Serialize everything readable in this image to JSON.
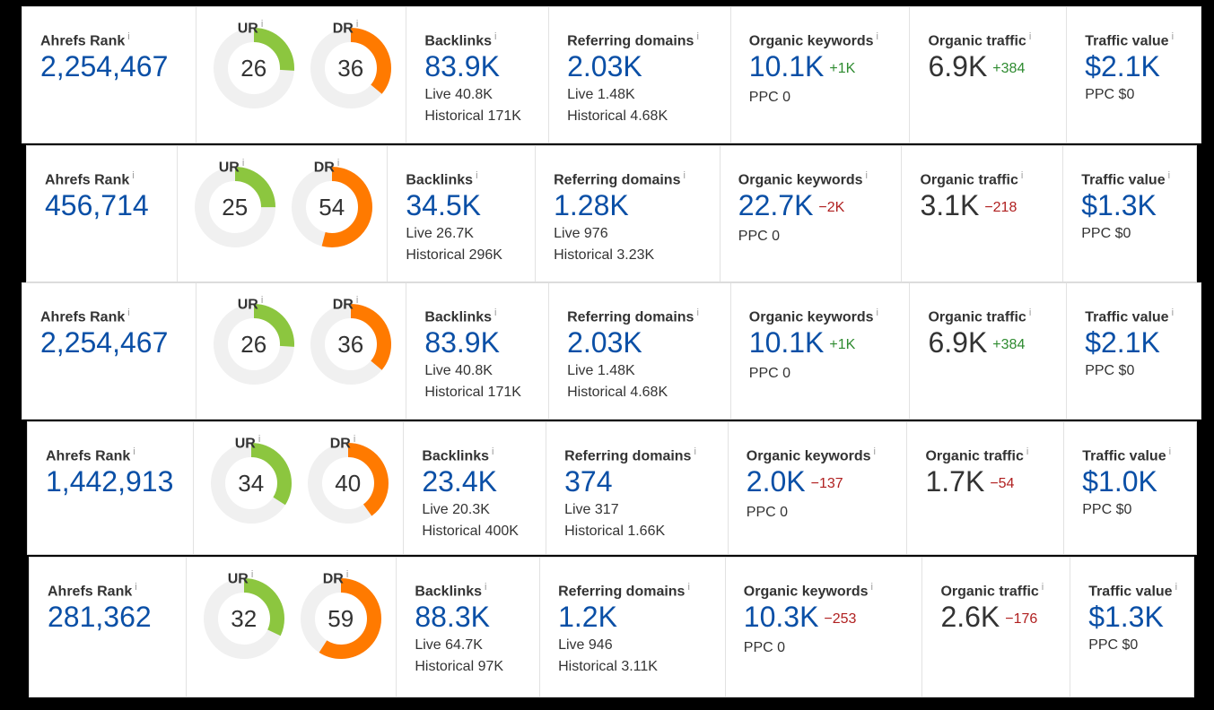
{
  "labels": {
    "ahrefs_rank": "Ahrefs Rank",
    "ur": "UR",
    "dr": "DR",
    "backlinks": "Backlinks",
    "referring_domains": "Referring domains",
    "organic_keywords": "Organic keywords",
    "organic_traffic": "Organic traffic",
    "traffic_value": "Traffic value",
    "info": "i"
  },
  "colors": {
    "ur": "#8cc63f",
    "dr": "#ff7a00",
    "track": "#f0f0f0",
    "link_blue": "#0a4fa6",
    "up": "#2e8b30",
    "down": "#b02020"
  },
  "rows": [
    {
      "ahrefs_rank": "2,254,467",
      "ur": "26",
      "dr": "36",
      "backlinks": "83.9K",
      "backlinks_live": "Live 40.8K",
      "backlinks_historical": "Historical 171K",
      "ref_domains": "2.03K",
      "ref_live": "Live 1.48K",
      "ref_historical": "Historical 4.68K",
      "org_keywords": "10.1K",
      "org_keywords_delta": "+1K",
      "org_keywords_ppc": "PPC 0",
      "org_traffic": "6.9K",
      "org_traffic_delta": "+384",
      "traffic_value": "$2.1K",
      "traffic_value_ppc": "PPC $0"
    },
    {
      "ahrefs_rank": "456,714",
      "ur": "25",
      "dr": "54",
      "backlinks": "34.5K",
      "backlinks_live": "Live 26.7K",
      "backlinks_historical": "Historical 296K",
      "ref_domains": "1.28K",
      "ref_live": "Live 976",
      "ref_historical": "Historical 3.23K",
      "org_keywords": "22.7K",
      "org_keywords_delta": "−2K",
      "org_keywords_ppc": "PPC 0",
      "org_traffic": "3.1K",
      "org_traffic_delta": "−218",
      "traffic_value": "$1.3K",
      "traffic_value_ppc": "PPC $0"
    },
    {
      "ahrefs_rank": "2,254,467",
      "ur": "26",
      "dr": "36",
      "backlinks": "83.9K",
      "backlinks_live": "Live 40.8K",
      "backlinks_historical": "Historical 171K",
      "ref_domains": "2.03K",
      "ref_live": "Live 1.48K",
      "ref_historical": "Historical 4.68K",
      "org_keywords": "10.1K",
      "org_keywords_delta": "+1K",
      "org_keywords_ppc": "PPC 0",
      "org_traffic": "6.9K",
      "org_traffic_delta": "+384",
      "traffic_value": "$2.1K",
      "traffic_value_ppc": "PPC $0"
    },
    {
      "ahrefs_rank": "1,442,913",
      "ur": "34",
      "dr": "40",
      "backlinks": "23.4K",
      "backlinks_live": "Live 20.3K",
      "backlinks_historical": "Historical 400K",
      "ref_domains": "374",
      "ref_live": "Live 317",
      "ref_historical": "Historical 1.66K",
      "org_keywords": "2.0K",
      "org_keywords_delta": "−137",
      "org_keywords_ppc": "PPC 0",
      "org_traffic": "1.7K",
      "org_traffic_delta": "−54",
      "traffic_value": "$1.0K",
      "traffic_value_ppc": "PPC $0"
    },
    {
      "ahrefs_rank": "281,362",
      "ur": "32",
      "dr": "59",
      "backlinks": "88.3K",
      "backlinks_live": "Live 64.7K",
      "backlinks_historical": "Historical 97K",
      "ref_domains": "1.2K",
      "ref_live": "Live 946",
      "ref_historical": "Historical 3.11K",
      "org_keywords": "10.3K",
      "org_keywords_delta": "−253",
      "org_keywords_ppc": "PPC 0",
      "org_traffic": "2.6K",
      "org_traffic_delta": "−176",
      "traffic_value": "$1.3K",
      "traffic_value_ppc": "PPC $0"
    }
  ]
}
